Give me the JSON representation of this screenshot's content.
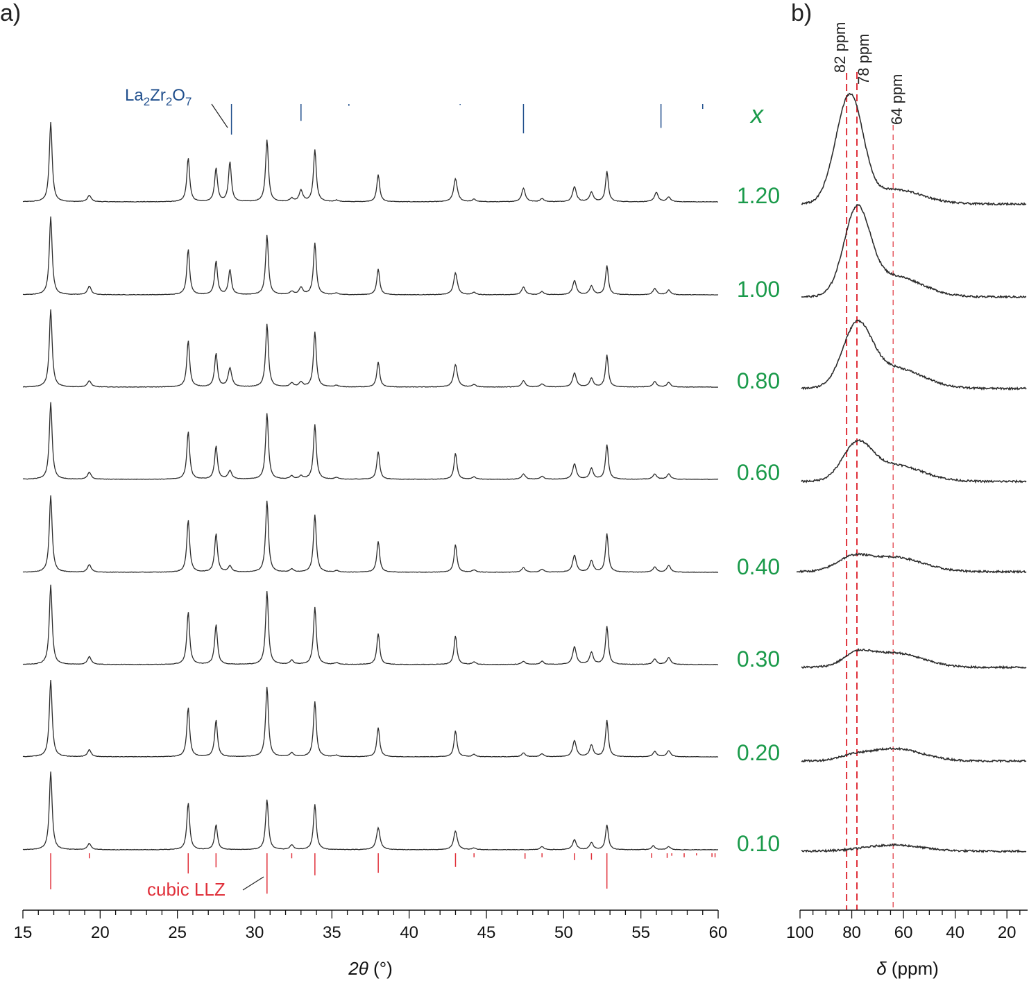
{
  "panels": {
    "a_label": "a)",
    "b_label": "b)"
  },
  "colors": {
    "trace": "#2b2b2b",
    "composition": "#1a9a4a",
    "la2zr2o7": "#1f4e8c",
    "llz": "#e0303a"
  },
  "chart_data": [
    {
      "panel": "a)",
      "type": "line",
      "xlabel": "2θ (°)",
      "xlabel_symbol": "2θ",
      "xlabel_unit": "(°)",
      "xlim": [
        15,
        60
      ],
      "xticks": [
        "15",
        "20",
        "25",
        "30",
        "35",
        "40",
        "45",
        "50",
        "55",
        "60"
      ],
      "series_header": "x",
      "series": [
        {
          "name": "1.20",
          "peaks": [
            [
              16.8,
              1.0
            ],
            [
              19.3,
              0.08
            ],
            [
              25.7,
              0.55
            ],
            [
              27.5,
              0.42
            ],
            [
              28.4,
              0.5
            ],
            [
              30.8,
              0.78
            ],
            [
              32.4,
              0.04
            ],
            [
              33.0,
              0.14
            ],
            [
              33.9,
              0.65
            ],
            [
              35.3,
              0.02
            ],
            [
              38.0,
              0.34
            ],
            [
              43.0,
              0.29
            ],
            [
              44.2,
              0.03
            ],
            [
              47.4,
              0.17
            ],
            [
              48.6,
              0.04
            ],
            [
              50.7,
              0.19
            ],
            [
              51.8,
              0.12
            ],
            [
              52.8,
              0.38
            ],
            [
              56.0,
              0.12
            ],
            [
              56.8,
              0.06
            ]
          ]
        },
        {
          "name": "1.00",
          "peaks": [
            [
              16.8,
              1.0
            ],
            [
              19.3,
              0.11
            ],
            [
              25.7,
              0.58
            ],
            [
              27.5,
              0.43
            ],
            [
              28.4,
              0.32
            ],
            [
              30.8,
              0.76
            ],
            [
              32.4,
              0.04
            ],
            [
              33.0,
              0.09
            ],
            [
              33.9,
              0.66
            ],
            [
              35.3,
              0.02
            ],
            [
              38.0,
              0.33
            ],
            [
              43.0,
              0.28
            ],
            [
              44.2,
              0.03
            ],
            [
              47.4,
              0.1
            ],
            [
              48.6,
              0.04
            ],
            [
              50.7,
              0.18
            ],
            [
              51.8,
              0.11
            ],
            [
              52.8,
              0.37
            ],
            [
              55.9,
              0.08
            ],
            [
              56.8,
              0.06
            ]
          ]
        },
        {
          "name": "0.80",
          "peaks": [
            [
              16.8,
              1.0
            ],
            [
              19.3,
              0.08
            ],
            [
              25.7,
              0.6
            ],
            [
              27.5,
              0.43
            ],
            [
              28.4,
              0.24
            ],
            [
              30.8,
              0.81
            ],
            [
              32.4,
              0.05
            ],
            [
              33.0,
              0.06
            ],
            [
              33.9,
              0.71
            ],
            [
              35.3,
              0.02
            ],
            [
              38.0,
              0.32
            ],
            [
              43.0,
              0.29
            ],
            [
              44.2,
              0.03
            ],
            [
              47.4,
              0.08
            ],
            [
              48.6,
              0.04
            ],
            [
              50.7,
              0.18
            ],
            [
              51.8,
              0.11
            ],
            [
              52.8,
              0.41
            ],
            [
              55.9,
              0.07
            ],
            [
              56.8,
              0.06
            ]
          ]
        },
        {
          "name": "0.60",
          "peaks": [
            [
              16.8,
              1.0
            ],
            [
              19.3,
              0.09
            ],
            [
              25.7,
              0.62
            ],
            [
              27.5,
              0.43
            ],
            [
              28.4,
              0.11
            ],
            [
              30.8,
              0.86
            ],
            [
              32.4,
              0.04
            ],
            [
              33.0,
              0.04
            ],
            [
              33.9,
              0.71
            ],
            [
              35.3,
              0.02
            ],
            [
              38.0,
              0.36
            ],
            [
              43.0,
              0.34
            ],
            [
              44.2,
              0.03
            ],
            [
              47.4,
              0.07
            ],
            [
              48.6,
              0.04
            ],
            [
              50.7,
              0.2
            ],
            [
              51.8,
              0.14
            ],
            [
              52.8,
              0.45
            ],
            [
              55.9,
              0.07
            ],
            [
              56.8,
              0.07
            ]
          ]
        },
        {
          "name": "0.40",
          "peaks": [
            [
              16.8,
              1.0
            ],
            [
              19.3,
              0.1
            ],
            [
              25.7,
              0.68
            ],
            [
              27.5,
              0.5
            ],
            [
              28.4,
              0.08
            ],
            [
              30.8,
              0.93
            ],
            [
              32.4,
              0.04
            ],
            [
              33.9,
              0.75
            ],
            [
              35.3,
              0.02
            ],
            [
              38.0,
              0.4
            ],
            [
              43.0,
              0.36
            ],
            [
              44.2,
              0.03
            ],
            [
              47.4,
              0.06
            ],
            [
              48.6,
              0.04
            ],
            [
              50.7,
              0.22
            ],
            [
              51.8,
              0.15
            ],
            [
              52.8,
              0.5
            ],
            [
              55.9,
              0.07
            ],
            [
              56.8,
              0.09
            ]
          ]
        },
        {
          "name": "0.30",
          "peaks": [
            [
              16.8,
              1.0
            ],
            [
              19.3,
              0.1
            ],
            [
              25.7,
              0.66
            ],
            [
              27.5,
              0.5
            ],
            [
              30.8,
              0.92
            ],
            [
              32.4,
              0.05
            ],
            [
              33.9,
              0.72
            ],
            [
              35.3,
              0.02
            ],
            [
              38.0,
              0.39
            ],
            [
              43.0,
              0.36
            ],
            [
              44.2,
              0.03
            ],
            [
              47.4,
              0.04
            ],
            [
              48.6,
              0.04
            ],
            [
              50.7,
              0.22
            ],
            [
              51.8,
              0.15
            ],
            [
              52.8,
              0.48
            ],
            [
              55.9,
              0.07
            ],
            [
              56.8,
              0.09
            ]
          ]
        },
        {
          "name": "0.20",
          "peaks": [
            [
              16.8,
              1.0
            ],
            [
              19.3,
              0.09
            ],
            [
              25.7,
              0.64
            ],
            [
              27.5,
              0.48
            ],
            [
              30.8,
              0.91
            ],
            [
              32.4,
              0.05
            ],
            [
              33.9,
              0.72
            ],
            [
              35.3,
              0.02
            ],
            [
              38.0,
              0.38
            ],
            [
              43.0,
              0.34
            ],
            [
              44.2,
              0.03
            ],
            [
              47.4,
              0.05
            ],
            [
              48.6,
              0.04
            ],
            [
              50.7,
              0.21
            ],
            [
              51.8,
              0.15
            ],
            [
              52.8,
              0.47
            ],
            [
              55.9,
              0.07
            ],
            [
              56.8,
              0.08
            ]
          ]
        },
        {
          "name": "0.10",
          "peaks": [
            [
              16.8,
              1.0
            ],
            [
              19.3,
              0.08
            ],
            [
              25.7,
              0.6
            ],
            [
              27.5,
              0.32
            ],
            [
              30.8,
              0.64
            ],
            [
              32.4,
              0.06
            ],
            [
              33.9,
              0.58
            ],
            [
              38.0,
              0.28
            ],
            [
              43.0,
              0.24
            ],
            [
              44.2,
              0.02
            ],
            [
              48.6,
              0.04
            ],
            [
              50.7,
              0.13
            ],
            [
              51.8,
              0.09
            ],
            [
              52.8,
              0.32
            ],
            [
              55.8,
              0.05
            ],
            [
              56.8,
              0.04
            ]
          ]
        }
      ],
      "reference_phases": [
        {
          "name": "La2Zr2O7",
          "label_parts": [
            {
              "t": "La",
              "sub": false
            },
            {
              "t": "2",
              "sub": true
            },
            {
              "t": "Zr",
              "sub": false
            },
            {
              "t": "2",
              "sub": true
            },
            {
              "t": "O",
              "sub": false
            },
            {
              "t": "7",
              "sub": true
            }
          ],
          "peaks": [
            [
              28.5,
              1.0
            ],
            [
              33.0,
              0.55
            ],
            [
              36.1,
              0.06
            ],
            [
              43.3,
              0.03
            ],
            [
              47.4,
              0.96
            ],
            [
              56.3,
              0.78
            ],
            [
              59.0,
              0.16
            ]
          ]
        },
        {
          "name": "cubic LLZ",
          "label": "cubic LLZ",
          "peaks": [
            [
              16.8,
              1.0
            ],
            [
              19.3,
              0.14
            ],
            [
              25.7,
              0.56
            ],
            [
              27.5,
              0.39
            ],
            [
              30.8,
              1.12
            ],
            [
              32.4,
              0.14
            ],
            [
              33.9,
              0.61
            ],
            [
              38.0,
              0.54
            ],
            [
              43.0,
              0.38
            ],
            [
              44.2,
              0.11
            ],
            [
              47.5,
              0.15
            ],
            [
              48.6,
              0.11
            ],
            [
              50.7,
              0.19
            ],
            [
              51.8,
              0.18
            ],
            [
              52.8,
              0.98
            ],
            [
              55.7,
              0.13
            ],
            [
              56.7,
              0.13
            ],
            [
              57.0,
              0.07
            ],
            [
              57.8,
              0.11
            ],
            [
              58.6,
              0.06
            ],
            [
              59.6,
              0.1
            ],
            [
              59.8,
              0.11
            ]
          ]
        }
      ]
    },
    {
      "panel": "b)",
      "type": "line",
      "xlabel": "δ (ppm)",
      "xlabel_symbol": "δ",
      "xlabel_unit": "(ppm)",
      "xlim": [
        100,
        12
      ],
      "xticks": [
        "100",
        "80",
        "60",
        "40",
        "20"
      ],
      "series": [
        {
          "name": "1.20",
          "components": [
            [
              82,
              0.82,
              5
            ],
            [
              78,
              0.28,
              4
            ],
            [
              64,
              0.14,
              11
            ]
          ]
        },
        {
          "name": "1.00",
          "components": [
            [
              78,
              0.79,
              5
            ],
            [
              64,
              0.2,
              11
            ]
          ]
        },
        {
          "name": "0.80",
          "components": [
            [
              78,
              0.56,
              5.5
            ],
            [
              64,
              0.2,
              11
            ]
          ]
        },
        {
          "name": "0.60",
          "components": [
            [
              78,
              0.32,
              5.5
            ],
            [
              64,
              0.16,
              11
            ]
          ]
        },
        {
          "name": "0.40",
          "components": [
            [
              80,
              0.11,
              6
            ],
            [
              64,
              0.14,
              11
            ]
          ]
        },
        {
          "name": "0.30",
          "components": [
            [
              78,
              0.1,
              5
            ],
            [
              64,
              0.14,
              11
            ]
          ]
        },
        {
          "name": "0.20",
          "components": [
            [
              80,
              0.03,
              5
            ],
            [
              64,
              0.12,
              11
            ]
          ]
        },
        {
          "name": "0.10",
          "components": [
            [
              64,
              0.06,
              11
            ]
          ]
        }
      ],
      "reference_lines": [
        {
          "label": "82 ppm",
          "ppm": 82
        },
        {
          "label": "78 ppm",
          "ppm": 78
        },
        {
          "label": "64 ppm",
          "ppm": 64
        }
      ]
    }
  ]
}
